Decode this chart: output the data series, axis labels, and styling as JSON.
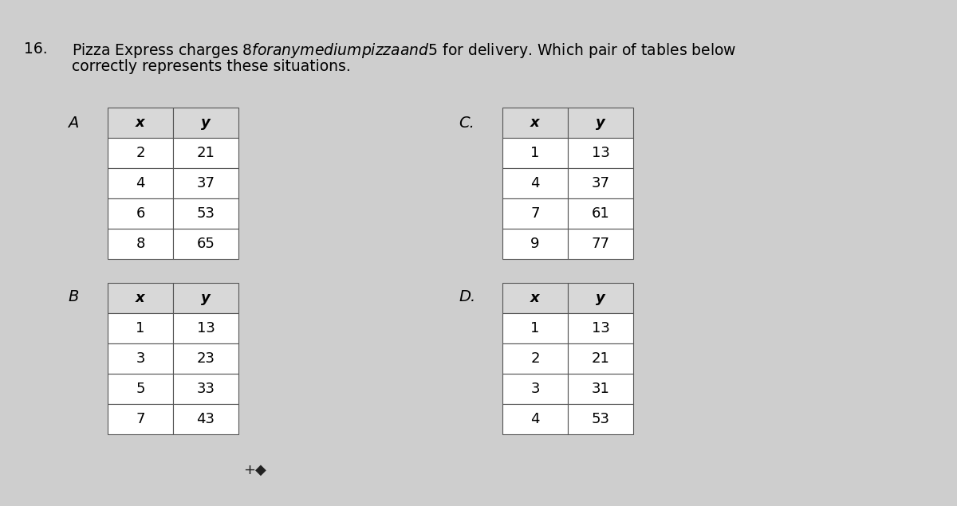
{
  "question_number": "16.",
  "question_line1": "Pizza Express charges $8 for any medium pizza and $5 for delivery. Which pair of tables below",
  "question_line2": "correctly represents these situations.",
  "background_color": "#cecece",
  "table_bg": "#ffffff",
  "header_bg": "#d8d8d8",
  "border_color": "#555555",
  "text_color": "#000000",
  "label_A": "A",
  "label_B": "B",
  "label_C": "C.",
  "label_D": "D.",
  "table_A": {
    "headers": [
      "x",
      "y"
    ],
    "rows": [
      [
        "2",
        "21"
      ],
      [
        "4",
        "37"
      ],
      [
        "6",
        "53"
      ],
      [
        "8",
        "65"
      ]
    ]
  },
  "table_B": {
    "headers": [
      "x",
      "y"
    ],
    "rows": [
      [
        "1",
        "13"
      ],
      [
        "3",
        "23"
      ],
      [
        "5",
        "33"
      ],
      [
        "7",
        "43"
      ]
    ]
  },
  "table_C": {
    "headers": [
      "x",
      "y"
    ],
    "rows": [
      [
        "1",
        "13"
      ],
      [
        "4",
        "37"
      ],
      [
        "7",
        "61"
      ],
      [
        "9",
        "77"
      ]
    ]
  },
  "table_D": {
    "headers": [
      "x",
      "y"
    ],
    "rows": [
      [
        "1",
        "13"
      ],
      [
        "2",
        "21"
      ],
      [
        "3",
        "31"
      ],
      [
        "4",
        "53"
      ]
    ]
  },
  "font_size_question": 13.5,
  "font_size_table": 13,
  "font_size_label": 14,
  "font_size_qnum": 13.5
}
